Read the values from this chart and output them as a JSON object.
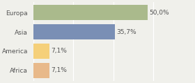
{
  "categories": [
    "Europa",
    "Asia",
    "America",
    "Africa"
  ],
  "values": [
    50.0,
    35.7,
    7.1,
    7.1
  ],
  "labels": [
    "50,0%",
    "35,7%",
    "7,1%",
    "7,1%"
  ],
  "bar_colors": [
    "#aaba8c",
    "#7a8fb5",
    "#f5d07a",
    "#e8b98a"
  ],
  "background_color": "#f0f0eb",
  "xlim": [
    0,
    70
  ],
  "bar_height": 0.78,
  "label_fontsize": 6.5,
  "tick_fontsize": 6.5,
  "grid_xticks": [
    0,
    17.5,
    35.0,
    52.5,
    70.0
  ]
}
